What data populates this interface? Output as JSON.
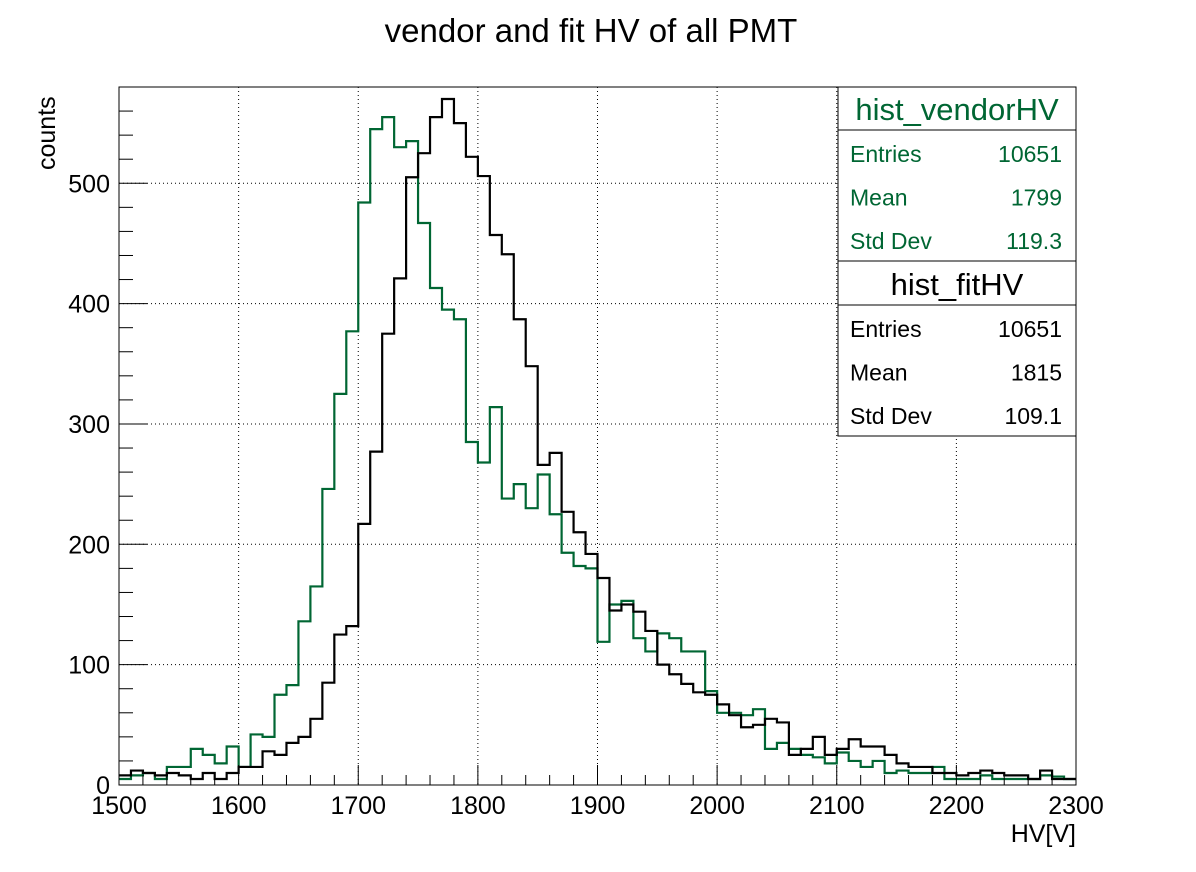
{
  "chart_data": {
    "type": "histogram",
    "title": "vendor and fit HV of all PMT",
    "xlabel": "HV[V]",
    "ylabel": "counts",
    "xlim": [
      1500,
      2300
    ],
    "ylim": [
      0,
      580
    ],
    "grid": true,
    "bin_width": 10,
    "x_ticks": [
      1500,
      1600,
      1700,
      1800,
      1900,
      2000,
      2100,
      2200,
      2300
    ],
    "y_ticks": [
      0,
      100,
      200,
      300,
      400,
      500
    ],
    "series": [
      {
        "name": "hist_vendorHV",
        "color": "#006633",
        "values": [
          5,
          8,
          10,
          5,
          15,
          15,
          30,
          25,
          18,
          32,
          15,
          42,
          40,
          75,
          83,
          136,
          165,
          246,
          325,
          377,
          484,
          545,
          555,
          530,
          535,
          467,
          413,
          395,
          387,
          285,
          268,
          314,
          238,
          250,
          230,
          258,
          225,
          193,
          182,
          180,
          119,
          150,
          153,
          122,
          111,
          126,
          122,
          111,
          111,
          78,
          60,
          60,
          58,
          63,
          30,
          35,
          30,
          25,
          23,
          18,
          27,
          20,
          15,
          20,
          10,
          12,
          10,
          10,
          15,
          5,
          5,
          5,
          8,
          5,
          5,
          5,
          5,
          8,
          7,
          5
        ]
      },
      {
        "name": "hist_fitHV",
        "color": "#000000",
        "values": [
          8,
          12,
          10,
          8,
          10,
          8,
          5,
          10,
          5,
          10,
          15,
          15,
          28,
          25,
          35,
          40,
          55,
          85,
          125,
          132,
          217,
          277,
          375,
          421,
          505,
          525,
          555,
          570,
          550,
          522,
          506,
          457,
          441,
          387,
          348,
          266,
          276,
          227,
          210,
          192,
          172,
          145,
          150,
          144,
          128,
          100,
          92,
          84,
          77,
          75,
          67,
          58,
          48,
          50,
          55,
          52,
          25,
          30,
          40,
          25,
          30,
          38,
          32,
          32,
          25,
          18,
          15,
          15,
          10,
          10,
          8,
          10,
          12,
          10,
          8,
          8,
          5,
          12,
          5,
          5
        ]
      }
    ],
    "stats": [
      {
        "name": "hist_vendorHV",
        "color": "#006633",
        "rows": [
          {
            "label": "Entries",
            "value": "10651"
          },
          {
            "label": "Mean",
            "value": "1799"
          },
          {
            "label": "Std Dev",
            "value": "119.3"
          }
        ]
      },
      {
        "name": "hist_fitHV",
        "color": "#000000",
        "rows": [
          {
            "label": "Entries",
            "value": "10651"
          },
          {
            "label": "Mean",
            "value": "1815"
          },
          {
            "label": "Std Dev",
            "value": "109.1"
          }
        ]
      }
    ]
  }
}
